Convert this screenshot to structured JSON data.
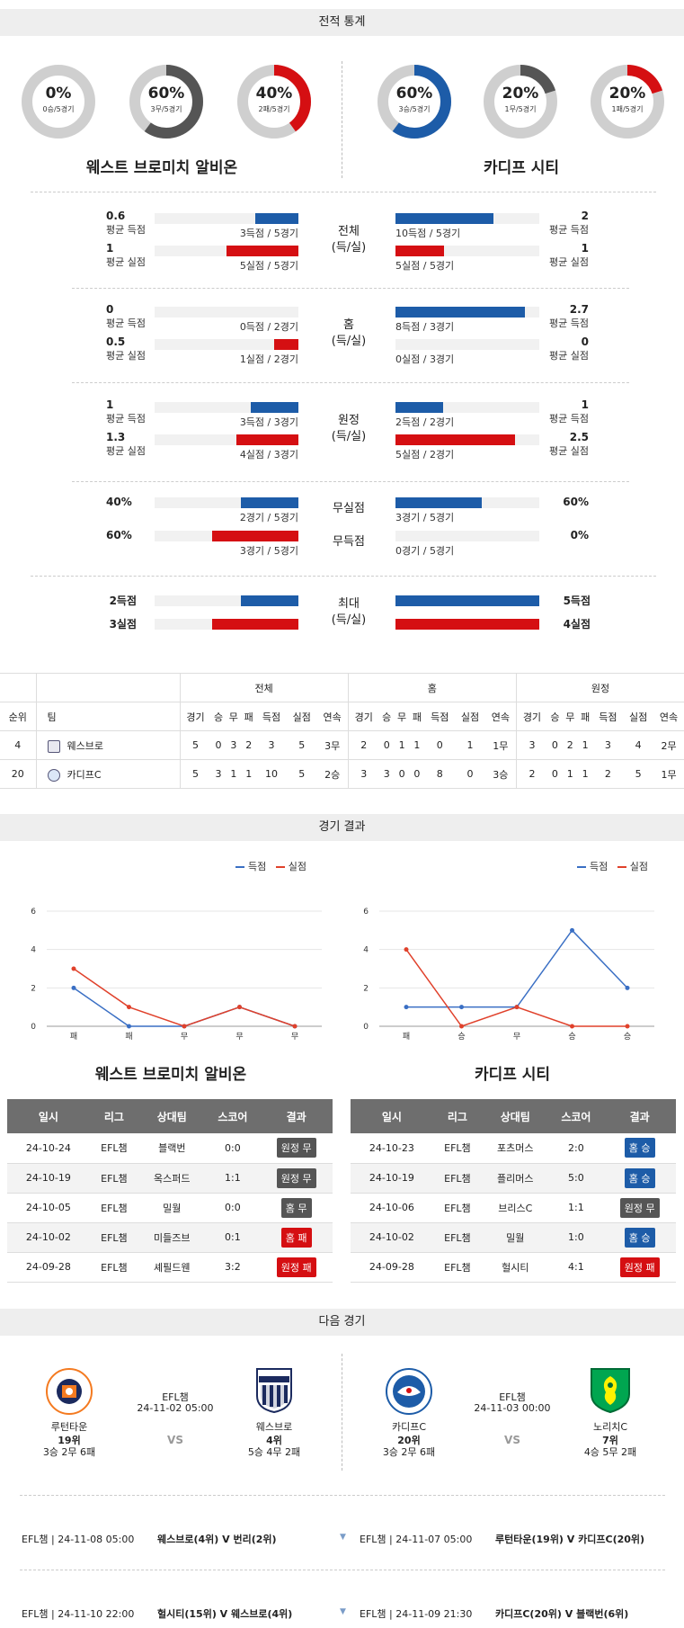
{
  "sections": {
    "stats": "전적 통계",
    "results": "경기 결과",
    "next": "다음 경기"
  },
  "teams": {
    "home": "웨스트 브로미치 알비온",
    "away": "카디프 시티"
  },
  "donuts": [
    {
      "pct": "0%",
      "sub": "0승/5경기",
      "value": 0,
      "color": "#555555"
    },
    {
      "pct": "60%",
      "sub": "3무/5경기",
      "value": 60,
      "color": "#555555"
    },
    {
      "pct": "40%",
      "sub": "2패/5경기",
      "value": 40,
      "color": "#d50f12"
    },
    {
      "pct": "60%",
      "sub": "3승/5경기",
      "value": 60,
      "color": "#1d5ca8"
    },
    {
      "pct": "20%",
      "sub": "1무/5경기",
      "value": 20,
      "color": "#555555"
    },
    {
      "pct": "20%",
      "sub": "1패/5경기",
      "value": 20,
      "color": "#d50f12"
    }
  ],
  "compare": [
    {
      "mid": "전체\n(득/실)",
      "rows": [
        {
          "lnum": "0.6",
          "llbl": "평균 득점",
          "lcap": "3득점 / 5경기",
          "lval": 0.3,
          "lcolor": "blue",
          "rnum": "2",
          "rlbl": "평균 득점",
          "rcap": "10득점 / 5경기",
          "rval": 0.68,
          "rcolor": "blue"
        },
        {
          "lnum": "1",
          "llbl": "평균 실점",
          "lcap": "5실점 / 5경기",
          "lval": 0.5,
          "lcolor": "red",
          "rnum": "1",
          "rlbl": "평균 실점",
          "rcap": "5실점 / 5경기",
          "rval": 0.34,
          "rcolor": "red"
        }
      ]
    },
    {
      "mid": "홈\n(득/실)",
      "rows": [
        {
          "lnum": "0",
          "llbl": "평균 득점",
          "lcap": "0득점 / 2경기",
          "lval": 0,
          "lcolor": "blue",
          "rnum": "2.7",
          "rlbl": "평균 득점",
          "rcap": "8득점 / 3경기",
          "rval": 0.9,
          "rcolor": "blue"
        },
        {
          "lnum": "0.5",
          "llbl": "평균 실점",
          "lcap": "1실점 / 2경기",
          "lval": 0.17,
          "lcolor": "red",
          "rnum": "0",
          "rlbl": "평균 실점",
          "rcap": "0실점 / 3경기",
          "rval": 0,
          "rcolor": "red"
        }
      ]
    },
    {
      "mid": "원정\n(득/실)",
      "rows": [
        {
          "lnum": "1",
          "llbl": "평균 득점",
          "lcap": "3득점 / 3경기",
          "lval": 0.33,
          "lcolor": "blue",
          "rnum": "1",
          "rlbl": "평균 득점",
          "rcap": "2득점 / 2경기",
          "rval": 0.33,
          "rcolor": "blue"
        },
        {
          "lnum": "1.3",
          "llbl": "평균 실점",
          "lcap": "4실점 / 3경기",
          "lval": 0.43,
          "lcolor": "red",
          "rnum": "2.5",
          "rlbl": "평균 실점",
          "rcap": "5실점 / 2경기",
          "rval": 0.83,
          "rcolor": "red"
        }
      ]
    }
  ],
  "clean": [
    {
      "mid": "무실점",
      "lnum": "40%",
      "lcap": "2경기 / 5경기",
      "lval": 0.4,
      "lcolor": "blue",
      "rnum": "60%",
      "rcap": "3경기 / 5경기",
      "rval": 0.6,
      "rcolor": "blue"
    },
    {
      "mid": "무득점",
      "lnum": "60%",
      "lcap": "3경기 / 5경기",
      "lval": 0.6,
      "lcolor": "red",
      "rnum": "0%",
      "rcap": "0경기 / 5경기",
      "rval": 0,
      "rcolor": "red"
    }
  ],
  "maxrow": {
    "mid": "최대\n(득/실)",
    "rows": [
      {
        "lnum": "2득점",
        "lval": 0.4,
        "lcolor": "blue",
        "rnum": "5득점",
        "rval": 1.0,
        "rcolor": "blue"
      },
      {
        "lnum": "3실점",
        "lval": 0.6,
        "lcolor": "red",
        "rnum": "4실점",
        "rval": 1.0,
        "rcolor": "red"
      }
    ]
  },
  "standings": {
    "groups": [
      "전체",
      "홈",
      "원정"
    ],
    "cols": [
      "경기",
      "승",
      "무",
      "패",
      "득점",
      "실점",
      "연속"
    ],
    "rank_h": "순위",
    "team_h": "팀",
    "rows": [
      {
        "rank": "4",
        "team": "웨스브로",
        "all": [
          "5",
          "0",
          "3",
          "2",
          "3",
          "5",
          "3무"
        ],
        "home": [
          "2",
          "0",
          "1",
          "1",
          "0",
          "1",
          "1무"
        ],
        "away": [
          "3",
          "0",
          "2",
          "1",
          "3",
          "4",
          "2무"
        ]
      },
      {
        "rank": "20",
        "team": "카디프C",
        "all": [
          "5",
          "3",
          "1",
          "1",
          "10",
          "5",
          "2승"
        ],
        "home": [
          "3",
          "3",
          "0",
          "0",
          "8",
          "0",
          "3승"
        ],
        "away": [
          "2",
          "0",
          "1",
          "1",
          "2",
          "5",
          "1무"
        ]
      }
    ]
  },
  "legend": {
    "score": "득점",
    "concede": "실점"
  },
  "chart_data": [
    {
      "type": "line",
      "categories": [
        "패",
        "패",
        "무",
        "무",
        "무"
      ],
      "ylim": [
        0,
        6
      ],
      "yticks": [
        0,
        2,
        4,
        6
      ],
      "series": [
        {
          "name": "득점",
          "color": "#3a6fc4",
          "values": [
            2,
            0,
            0,
            1,
            0
          ]
        },
        {
          "name": "실점",
          "color": "#e0412b",
          "values": [
            3,
            1,
            0,
            1,
            0
          ]
        }
      ]
    },
    {
      "type": "line",
      "categories": [
        "패",
        "승",
        "무",
        "승",
        "승"
      ],
      "ylim": [
        0,
        6
      ],
      "yticks": [
        0,
        2,
        4,
        6
      ],
      "series": [
        {
          "name": "득점",
          "color": "#3a6fc4",
          "values": [
            1,
            1,
            1,
            5,
            2
          ]
        },
        {
          "name": "실점",
          "color": "#e0412b",
          "values": [
            4,
            0,
            1,
            0,
            0
          ]
        }
      ]
    }
  ],
  "results": {
    "headers": [
      "일시",
      "리그",
      "상대팀",
      "스코어",
      "결과"
    ],
    "home": [
      {
        "date": "24-10-24",
        "league": "EFL챔",
        "opp": "블랙번",
        "score": "0:0",
        "res": "원정 무",
        "type": "draw"
      },
      {
        "date": "24-10-19",
        "league": "EFL챔",
        "opp": "옥스퍼드",
        "score": "1:1",
        "res": "원정 무",
        "type": "draw"
      },
      {
        "date": "24-10-05",
        "league": "EFL챔",
        "opp": "밀월",
        "score": "0:0",
        "res": "홈 무",
        "type": "draw"
      },
      {
        "date": "24-10-02",
        "league": "EFL챔",
        "opp": "미들즈브",
        "score": "0:1",
        "res": "홈 패",
        "type": "loss"
      },
      {
        "date": "24-09-28",
        "league": "EFL챔",
        "opp": "셰필드웬",
        "score": "3:2",
        "res": "원정 패",
        "type": "loss"
      }
    ],
    "away": [
      {
        "date": "24-10-23",
        "league": "EFL챔",
        "opp": "포츠머스",
        "score": "2:0",
        "res": "홈 승",
        "type": "win"
      },
      {
        "date": "24-10-19",
        "league": "EFL챔",
        "opp": "플리머스",
        "score": "5:0",
        "res": "홈 승",
        "type": "win"
      },
      {
        "date": "24-10-06",
        "league": "EFL챔",
        "opp": "브리스C",
        "score": "1:1",
        "res": "원정 무",
        "type": "draw"
      },
      {
        "date": "24-10-02",
        "league": "EFL챔",
        "opp": "밀월",
        "score": "1:0",
        "res": "홈 승",
        "type": "win"
      },
      {
        "date": "24-09-28",
        "league": "EFL챔",
        "opp": "헐시티",
        "score": "4:1",
        "res": "원정 패",
        "type": "loss"
      }
    ]
  },
  "next": {
    "left": {
      "t1": "루턴타운",
      "t1rank": "19위",
      "t1rec": "3승 2무 6패",
      "league": "EFL챔",
      "time": "24-11-02 05:00",
      "vs": "VS",
      "t2": "웨스브로",
      "t2rank": "4위",
      "t2rec": "5승 4무 2패"
    },
    "right": {
      "t1": "카디프C",
      "t1rank": "20위",
      "t1rec": "3승 2무 6패",
      "league": "EFL챔",
      "time": "24-11-03 00:00",
      "vs": "VS",
      "t2": "노리치C",
      "t2rank": "7위",
      "t2rec": "4승 5무 2패"
    }
  },
  "fixtures": [
    {
      "l": "EFL챔 | 24-11-08 05:00",
      "lt": "웨스브로(4위) V 번리(2위)",
      "r": "EFL챔 | 24-11-07 05:00",
      "rt": "루턴타운(19위) V 카디프C(20위)"
    },
    {
      "l": "EFL챔 | 24-11-10 22:00",
      "lt": "헐시티(15위) V 웨스브로(4위)",
      "r": "EFL챔 | 24-11-09 21:30",
      "rt": "카디프C(20위) V 블랙번(6위)"
    }
  ]
}
